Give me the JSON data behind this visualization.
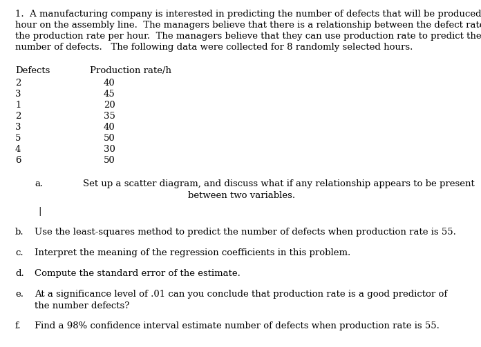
{
  "title_lines": [
    "1.  A manufacturing company is interested in predicting the number of defects that will be produced each",
    "hour on the assembly line.  The managers believe that there is a relationship between the defect rate and",
    "the production rate per hour.  The managers believe that they can use production rate to predict the",
    "number of defects.   The following data were collected for 8 randomly selected hours."
  ],
  "col1_header": "Defects",
  "col2_header": "Production rate/h",
  "defects": [
    2,
    3,
    1,
    2,
    3,
    5,
    4,
    6
  ],
  "production": [
    40,
    45,
    20,
    35,
    40,
    50,
    30,
    50
  ],
  "qa_label": "a.",
  "qa_text1": "Set up a scatter diagram, and discuss what if any relationship appears to be present",
  "qa_text2": "between two variables.",
  "qb_label": "b.",
  "qb_text": "Use the least-squares method to predict the number of defects when production rate is 55.",
  "qc_label": "c.",
  "qc_text": "Interpret the meaning of the regression coefficients in this problem.",
  "qd_label": "d.",
  "qd_text": "Compute the standard error of the estimate.",
  "qe_label": "e.",
  "qe_text1": "At a significance level of .01 can you conclude that production rate is a good predictor of",
  "qe_text2": "the number defects?",
  "qf_label": "f.",
  "qf_text": "Find a 98% confidence interval estimate number of defects when production rate is 55.",
  "bg_color": "#ffffff",
  "text_color": "#000000",
  "font_size": 9.5,
  "font_family": "DejaVu Serif",
  "fig_width": 6.96,
  "fig_height": 5.03,
  "dpi": 100
}
